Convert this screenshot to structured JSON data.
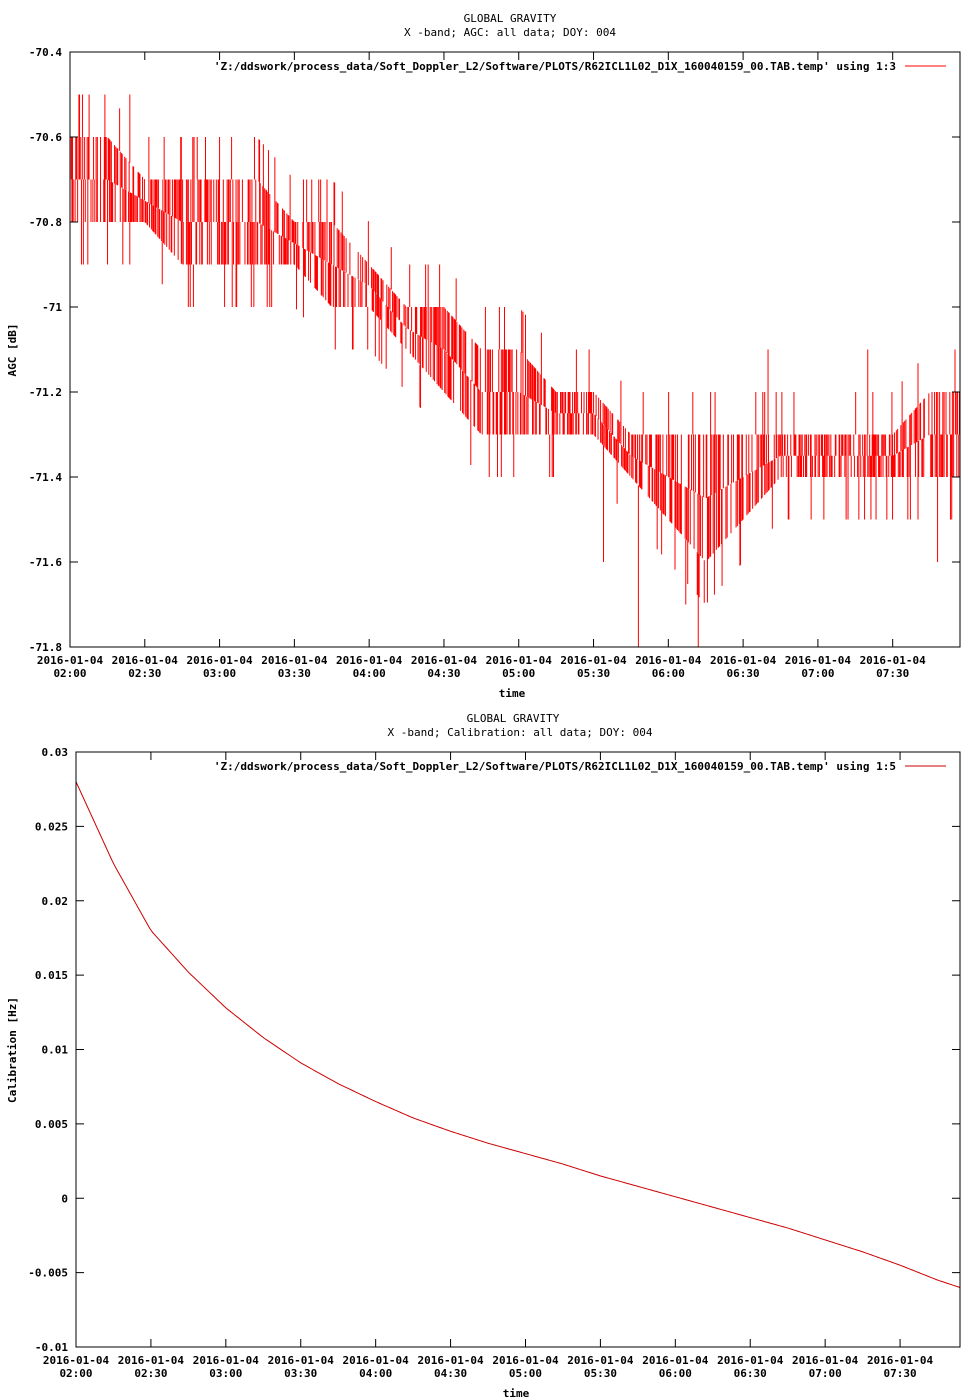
{
  "chart_data": [
    {
      "type": "line",
      "title": "GLOBAL GRAVITY",
      "subtitle": "X -band; AGC: all data; DOY: 004",
      "xlabel": "time",
      "ylabel": "AGC [dB]",
      "legend": "'Z:/ddswork/process_data/Soft_Doppler_L2/Software/PLOTS/R62ICL1L02_D1X_160040159_00.TAB.temp' using 1:3",
      "legend_position": "top-right",
      "color": "#ff0000",
      "xlim": [
        "2016-01-04 02:00",
        "2016-01-04 07:57"
      ],
      "ylim": [
        -71.8,
        -70.4
      ],
      "y_ticks": [
        -70.4,
        -70.6,
        -70.8,
        -71,
        -71.2,
        -71.4,
        -71.6,
        -71.8
      ],
      "y_tick_labels": [
        "-70.4",
        "-70.6",
        "-70.8",
        "-71",
        "-71.2",
        "-71.4",
        "-71.6",
        "-71.8"
      ],
      "x_tick_labels": [
        [
          "2016-01-04",
          "02:00"
        ],
        [
          "2016-01-04",
          "02:30"
        ],
        [
          "2016-01-04",
          "03:00"
        ],
        [
          "2016-01-04",
          "03:30"
        ],
        [
          "2016-01-04",
          "04:00"
        ],
        [
          "2016-01-04",
          "04:30"
        ],
        [
          "2016-01-04",
          "05:00"
        ],
        [
          "2016-01-04",
          "05:30"
        ],
        [
          "2016-01-04",
          "06:00"
        ],
        [
          "2016-01-04",
          "06:30"
        ],
        [
          "2016-01-04",
          "07:00"
        ],
        [
          "2016-01-04",
          "07:30"
        ]
      ],
      "band": {
        "x": [
          "2016-01-04 02:00",
          "2016-01-04 02:15",
          "2016-01-04 02:30",
          "2016-01-04 02:45",
          "2016-01-04 03:00",
          "2016-01-04 03:15",
          "2016-01-04 03:30",
          "2016-01-04 03:45",
          "2016-01-04 04:00",
          "2016-01-04 04:15",
          "2016-01-04 04:30",
          "2016-01-04 04:45",
          "2016-01-04 05:00",
          "2016-01-04 05:15",
          "2016-01-04 05:30",
          "2016-01-04 05:45",
          "2016-01-04 06:00",
          "2016-01-04 06:15",
          "2016-01-04 06:30",
          "2016-01-04 06:45",
          "2016-01-04 07:00",
          "2016-01-04 07:15",
          "2016-01-04 07:30",
          "2016-01-04 07:45",
          "2016-01-04 07:57"
        ],
        "low": [
          -70.8,
          -70.8,
          -70.8,
          -70.9,
          -70.9,
          -70.9,
          -70.9,
          -71.0,
          -71.0,
          -71.1,
          -71.2,
          -71.3,
          -71.3,
          -71.3,
          -71.3,
          -71.4,
          -71.5,
          -71.6,
          -71.5,
          -71.4,
          -71.4,
          -71.4,
          -71.4,
          -71.4,
          -71.4
        ],
        "high": [
          -70.6,
          -70.6,
          -70.7,
          -70.7,
          -70.7,
          -70.7,
          -70.8,
          -70.8,
          -70.9,
          -71.0,
          -71.0,
          -71.1,
          -71.1,
          -71.2,
          -71.2,
          -71.3,
          -71.3,
          -71.3,
          -71.3,
          -71.3,
          -71.3,
          -71.3,
          -71.3,
          -71.2,
          -71.2
        ]
      },
      "spike_mins": [
        {
          "x": "2016-01-04 05:48",
          "y": -71.8
        },
        {
          "x": "2016-01-04 06:12",
          "y": -71.8
        },
        {
          "x": "2016-01-04 06:07",
          "y": -71.7
        },
        {
          "x": "2016-01-04 05:14",
          "y": -71.3
        },
        {
          "x": "2016-01-04 04:58",
          "y": -71.4
        },
        {
          "x": "2016-01-04 05:34",
          "y": -71.6
        },
        {
          "x": "2016-01-04 07:48",
          "y": -71.6
        }
      ],
      "spike_maxs": [
        {
          "x": "2016-01-04 02:05",
          "y": -70.5
        },
        {
          "x": "2016-01-04 02:14",
          "y": -70.5
        },
        {
          "x": "2016-01-04 02:24",
          "y": -70.5
        },
        {
          "x": "2016-01-04 03:00",
          "y": -70.6
        },
        {
          "x": "2016-01-04 06:40",
          "y": -71.1
        },
        {
          "x": "2016-01-04 07:20",
          "y": -71.1
        },
        {
          "x": "2016-01-04 07:55",
          "y": -71.1
        }
      ]
    },
    {
      "type": "line",
      "title": "GLOBAL GRAVITY",
      "subtitle": "X -band; Calibration: all data; DOY: 004",
      "xlabel": "time",
      "ylabel": "Calibration [Hz]",
      "legend": "'Z:/ddswork/process_data/Soft_Doppler_L2/Software/PLOTS/R62ICL1L02_D1X_160040159_00.TAB.temp' using 1:5",
      "legend_position": "top-right",
      "color": "#cc0000",
      "xlim": [
        "2016-01-04 02:00",
        "2016-01-04 07:54"
      ],
      "ylim": [
        -0.01,
        0.03
      ],
      "y_ticks": [
        0.03,
        0.025,
        0.02,
        0.015,
        0.01,
        0.005,
        0,
        -0.005,
        -0.01
      ],
      "y_tick_labels": [
        "0.03",
        "0.025",
        "0.02",
        "0.015",
        "0.01",
        "0.005",
        "0",
        "-0.005",
        "-0.01"
      ],
      "x_tick_labels": [
        [
          "2016-01-04",
          "02:00"
        ],
        [
          "2016-01-04",
          "02:30"
        ],
        [
          "2016-01-04",
          "03:00"
        ],
        [
          "2016-01-04",
          "03:30"
        ],
        [
          "2016-01-04",
          "04:00"
        ],
        [
          "2016-01-04",
          "04:30"
        ],
        [
          "2016-01-04",
          "05:00"
        ],
        [
          "2016-01-04",
          "05:30"
        ],
        [
          "2016-01-04",
          "06:00"
        ],
        [
          "2016-01-04",
          "06:30"
        ],
        [
          "2016-01-04",
          "07:00"
        ],
        [
          "2016-01-04",
          "07:30"
        ]
      ],
      "x": [
        "2016-01-04 02:00",
        "2016-01-04 02:15",
        "2016-01-04 02:30",
        "2016-01-04 02:45",
        "2016-01-04 03:00",
        "2016-01-04 03:15",
        "2016-01-04 03:30",
        "2016-01-04 03:45",
        "2016-01-04 04:00",
        "2016-01-04 04:15",
        "2016-01-04 04:30",
        "2016-01-04 04:45",
        "2016-01-04 05:00",
        "2016-01-04 05:15",
        "2016-01-04 05:30",
        "2016-01-04 05:45",
        "2016-01-04 06:00",
        "2016-01-04 06:15",
        "2016-01-04 06:30",
        "2016-01-04 06:45",
        "2016-01-04 07:00",
        "2016-01-04 07:15",
        "2016-01-04 07:30",
        "2016-01-04 07:45",
        "2016-01-04 07:54"
      ],
      "y": [
        0.028,
        0.0225,
        0.018,
        0.0152,
        0.0128,
        0.0108,
        0.0091,
        0.0077,
        0.0065,
        0.0054,
        0.0045,
        0.0037,
        0.003,
        0.0023,
        0.0015,
        0.0008,
        0.0001,
        -0.0006,
        -0.0013,
        -0.002,
        -0.0028,
        -0.0036,
        -0.0045,
        -0.0055,
        -0.006
      ]
    }
  ]
}
